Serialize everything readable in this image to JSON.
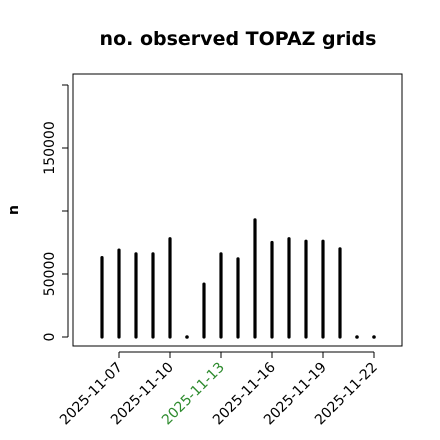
{
  "chart_data": {
    "type": "bar",
    "title": "no. observed TOPAZ grids",
    "xlabel": "",
    "ylabel": "n",
    "ylim": [
      0,
      210000
    ],
    "yticks": [
      0,
      50000,
      150000
    ],
    "grid": false,
    "categories": [
      "2025-11-06",
      "2025-11-07",
      "2025-11-08",
      "2025-11-09",
      "2025-11-10",
      "2025-11-11",
      "2025-11-12",
      "2025-11-13",
      "2025-11-14",
      "2025-11-15",
      "2025-11-16",
      "2025-11-17",
      "2025-11-18",
      "2025-11-19",
      "2025-11-20",
      "2025-11-21",
      "2025-11-22"
    ],
    "values": [
      63000,
      69000,
      66000,
      66000,
      78000,
      0,
      42000,
      66000,
      62000,
      93000,
      75000,
      78000,
      76000,
      76000,
      70000,
      0,
      0
    ],
    "xtick_labels": [
      {
        "date": "2025-11-07",
        "label": "2025-11-07",
        "color": "#000000"
      },
      {
        "date": "2025-11-10",
        "label": "2025-11-10",
        "color": "#000000"
      },
      {
        "date": "2025-11-13",
        "label": "2025-11-13",
        "color": "#2e8b2e"
      },
      {
        "date": "2025-11-16",
        "label": "2025-11-16",
        "color": "#000000"
      },
      {
        "date": "2025-11-19",
        "label": "2025-11-19",
        "color": "#000000"
      },
      {
        "date": "2025-11-22",
        "label": "2025-11-22",
        "color": "#000000"
      }
    ],
    "bar_color": "#000000"
  }
}
